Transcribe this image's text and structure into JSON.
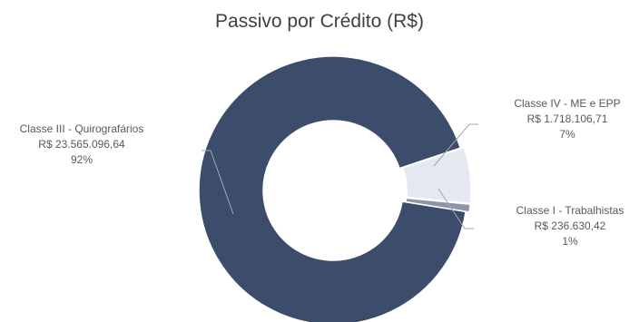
{
  "chart_data": {
    "type": "pie",
    "title": "Passivo por Crédito (R$)",
    "donut": true,
    "slices": [
      {
        "name": "Classe IV - ME e EPP",
        "amount": "R$ 1.718.106,71",
        "percent": "7%",
        "value": 1718106.71,
        "color": "#e3e8f1"
      },
      {
        "name": "Classe I - Trabalhistas",
        "amount": "R$ 236.630,42",
        "percent": "1%",
        "value": 236630.42,
        "color": "#8c96a6"
      },
      {
        "name": "Classe III - Quirografários",
        "amount": "R$ 23.565.096,64",
        "percent": "92%",
        "value": 23565096.64,
        "color": "#3b4d6b"
      }
    ]
  }
}
